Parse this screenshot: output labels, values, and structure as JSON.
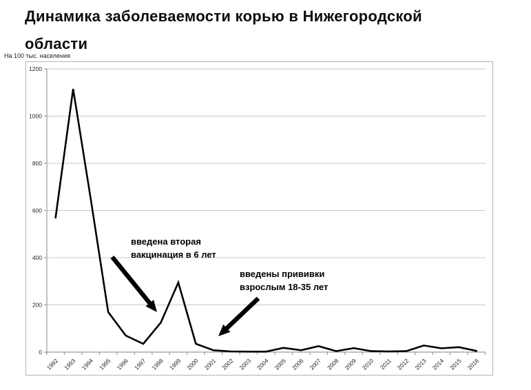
{
  "title_lines": [
    "Динамика заболеваемости корью в Нижегородской",
    "области"
  ],
  "chart_data": {
    "type": "line",
    "title": "Динамика заболеваемости корью в Нижегородской области",
    "ylabel": "На 100 тыс. населения",
    "xlabel": "",
    "x": [
      "1992",
      "1993",
      "1994",
      "1995",
      "1996",
      "1997",
      "1998",
      "1999",
      "2000",
      "2001",
      "2002",
      "2003",
      "2004",
      "2005",
      "2006",
      "2007",
      "2008",
      "2009",
      "2010",
      "2011",
      "2012",
      "2013",
      "2014",
      "2015",
      "2016"
    ],
    "series": [
      {
        "name": "заболеваемость корью",
        "values": [
          570,
          1115,
          650,
          170,
          70,
          35,
          125,
          295,
          35,
          8,
          3,
          2,
          2,
          18,
          8,
          25,
          4,
          17,
          4,
          3,
          4,
          28,
          16,
          21,
          5
        ]
      }
    ],
    "ylim": [
      0,
      1200
    ],
    "yticks": [
      0,
      200,
      400,
      600,
      800,
      1000,
      1200
    ],
    "grid": "horizontal",
    "legend": "none",
    "line_color": "#000000",
    "grid_color": "#c8c8c8",
    "axis_color": "#9a9a9a",
    "tick_label_color": "#262626",
    "annotations": [
      {
        "text_lines": [
          "введена вторая",
          "вакцинация в 6 лет"
        ],
        "arrow": {
          "from_x": 125,
          "from_y": 283,
          "to_x": 190,
          "to_y": 363
        }
      },
      {
        "text_lines": [
          "введены прививки",
          "взрослым 18-35 лет"
        ],
        "arrow": {
          "from_x": 337,
          "from_y": 343,
          "to_x": 279,
          "to_y": 398
        }
      }
    ]
  }
}
